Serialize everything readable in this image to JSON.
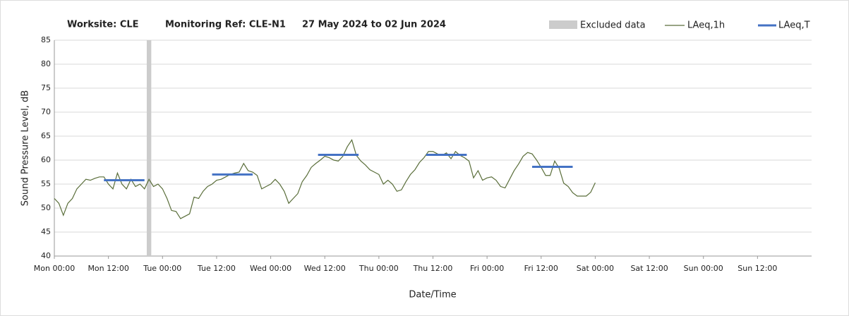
{
  "chart_data": {
    "type": "line",
    "title": [
      "Worksite: CLE",
      "Monitoring Ref: CLE-N1",
      "27 May 2024 to 02 Jun 2024"
    ],
    "x_label": "Date/Time",
    "y_label": "Sound Pressure Level, dB",
    "xlim": [
      0,
      168
    ],
    "xticks": [
      {
        "value": 0,
        "label": "Mon 00:00"
      },
      {
        "value": 12,
        "label": "Mon 12:00"
      },
      {
        "value": 24,
        "label": "Tue 00:00"
      },
      {
        "value": 36,
        "label": "Tue 12:00"
      },
      {
        "value": 48,
        "label": "Wed 00:00"
      },
      {
        "value": 60,
        "label": "Wed 12:00"
      },
      {
        "value": 72,
        "label": "Thu 00:00"
      },
      {
        "value": 84,
        "label": "Thu 12:00"
      },
      {
        "value": 96,
        "label": "Fri 00:00"
      },
      {
        "value": 108,
        "label": "Fri 12:00"
      },
      {
        "value": 120,
        "label": "Sat 00:00"
      },
      {
        "value": 132,
        "label": "Sat 12:00"
      },
      {
        "value": 144,
        "label": "Sun 00:00"
      },
      {
        "value": 156,
        "label": "Sun 12:00"
      }
    ],
    "ylim": [
      40,
      85
    ],
    "yticks": [
      40,
      45,
      50,
      55,
      60,
      65,
      70,
      75,
      80,
      85
    ],
    "grid": true,
    "excluded": {
      "name": "Excluded data",
      "color": "#cccccc",
      "start": 20.5,
      "end": 21.5
    },
    "series": [
      {
        "name": "LAeq,1h",
        "color": "#5a6e3a",
        "x": [
          0,
          1,
          2,
          3,
          4,
          5,
          6,
          7,
          8,
          9,
          10,
          11,
          12,
          13,
          14,
          15,
          16,
          17,
          18,
          19,
          20,
          21,
          22,
          23,
          24,
          25,
          26,
          27,
          28,
          29,
          30,
          31,
          32,
          33,
          34,
          35,
          36,
          37,
          38,
          39,
          40,
          41,
          42,
          43,
          44,
          45,
          46,
          47,
          48,
          49,
          50,
          51,
          52,
          53,
          54,
          55,
          56,
          57,
          58,
          59,
          60,
          61,
          62,
          63,
          64,
          65,
          66,
          67,
          68,
          69,
          70,
          71,
          72,
          73,
          74,
          75,
          76,
          77,
          78,
          79,
          80,
          81,
          82,
          83,
          84,
          85,
          86,
          87,
          88,
          89,
          90,
          91,
          92,
          93,
          94,
          95,
          96,
          97,
          98,
          99,
          100,
          101,
          102,
          103,
          104,
          105,
          106,
          107,
          108,
          109,
          110,
          111,
          112,
          113,
          114,
          115,
          116,
          117,
          118,
          119,
          120
        ],
        "values": [
          52,
          51,
          48.5,
          51,
          52,
          54,
          55,
          56,
          55.8,
          56.2,
          56.5,
          56.5,
          55,
          54,
          57.3,
          55,
          54,
          56,
          54.5,
          55,
          54,
          56,
          54.5,
          55,
          54,
          52,
          49.5,
          49.3,
          47.8,
          48.3,
          48.8,
          52.3,
          52,
          53.5,
          54.5,
          55,
          55.8,
          56,
          56.5,
          57,
          57.3,
          57.5,
          59.3,
          57.8,
          57.5,
          56.8,
          54,
          54.5,
          55,
          56,
          55,
          53.5,
          51,
          52,
          53,
          55.5,
          56.8,
          58.5,
          59.3,
          60,
          60.8,
          60.5,
          60,
          59.8,
          60.8,
          62.8,
          64.2,
          61,
          59.8,
          59,
          58,
          57.5,
          57,
          55,
          55.8,
          55,
          53.5,
          53.8,
          55.5,
          57,
          58,
          59.5,
          60.5,
          61.8,
          61.8,
          61.3,
          61,
          61.5,
          60.3,
          61.8,
          61,
          60.5,
          59.8,
          56.3,
          57.8,
          55.8,
          56.3,
          56.5,
          55.8,
          54.5,
          54.2,
          56,
          57.8,
          59.2,
          60.8,
          61.6,
          61.3,
          60,
          58.5,
          56.8,
          56.8,
          59.8,
          58.3,
          55.2,
          54.5,
          53.2,
          52.5,
          52.5,
          52.5,
          53.3,
          55.3
        ]
      },
      {
        "name": "LAeq,T",
        "color": "#4472c4",
        "segments": [
          {
            "start": 11,
            "end": 20,
            "value": 55.8
          },
          {
            "start": 35,
            "end": 44,
            "value": 57
          },
          {
            "start": 58.5,
            "end": 67.5,
            "value": 61.1
          },
          {
            "start": 82.5,
            "end": 91.5,
            "value": 61.1
          },
          {
            "start": 106,
            "end": 115,
            "value": 58.6
          }
        ]
      }
    ]
  }
}
